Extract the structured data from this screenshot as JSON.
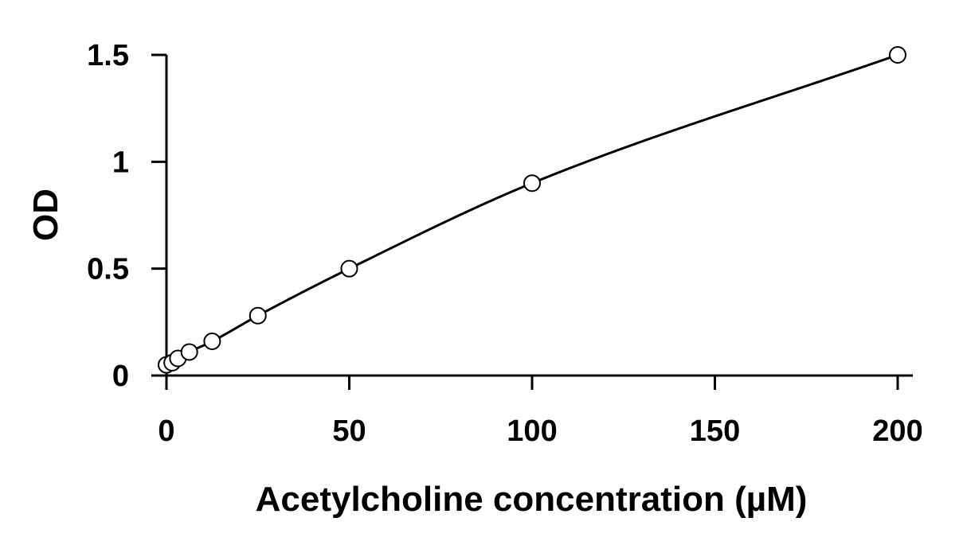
{
  "chart_data": {
    "type": "scatter",
    "title": "",
    "xlabel": "Acetylcholine concentration (µM)",
    "ylabel": "OD",
    "xlim": [
      0,
      200
    ],
    "ylim": [
      0,
      1.5
    ],
    "x_ticks": [
      0,
      50,
      100,
      150,
      200
    ],
    "x_tick_labels": [
      "0",
      "50",
      "100",
      "150",
      "200"
    ],
    "y_ticks": [
      0,
      0.5,
      1,
      1.5
    ],
    "y_tick_labels": [
      "0",
      "0.5",
      "1",
      "1.5"
    ],
    "grid": false,
    "legend": "none",
    "marker": "open-circle",
    "trendline": "smooth-fit",
    "series": [
      {
        "x": [
          0,
          1.56,
          3.13,
          6.25,
          12.5,
          25,
          50,
          100,
          200
        ],
        "y": [
          0.05,
          0.06,
          0.08,
          0.11,
          0.16,
          0.28,
          0.5,
          0.9,
          1.5
        ]
      }
    ],
    "colors": {
      "axis": "#000000",
      "marker_stroke": "#000000",
      "marker_fill": "#ffffff",
      "curve": "#000000"
    }
  }
}
